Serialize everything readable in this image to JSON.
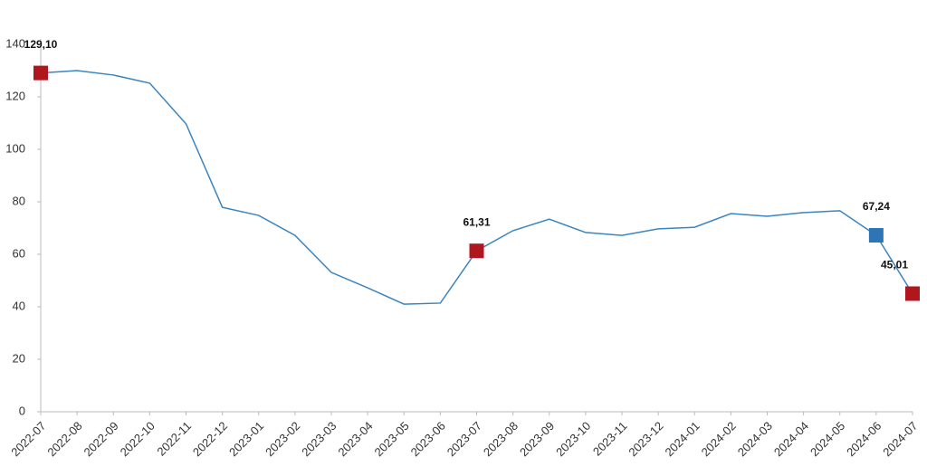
{
  "chart_data": {
    "type": "line",
    "categories": [
      "2022-07",
      "2022-08",
      "2022-09",
      "2022-10",
      "2022-11",
      "2022-12",
      "2023-01",
      "2023-02",
      "2023-03",
      "2023-04",
      "2023-05",
      "2023-06",
      "2023-07",
      "2023-08",
      "2023-09",
      "2023-10",
      "2023-11",
      "2023-12",
      "2024-01",
      "2024-02",
      "2024-03",
      "2024-04",
      "2024-05",
      "2024-06",
      "2024-07"
    ],
    "values": [
      129.1,
      130.0,
      128.3,
      125.2,
      109.7,
      77.9,
      74.8,
      67.2,
      53.1,
      47.2,
      41.0,
      41.4,
      61.31,
      69.0,
      73.4,
      68.3,
      67.2,
      69.7,
      70.3,
      75.5,
      74.5,
      75.9,
      76.6,
      67.24,
      45.01
    ],
    "value_labels": [
      "129,10",
      null,
      null,
      null,
      null,
      null,
      null,
      null,
      null,
      null,
      null,
      null,
      "61,31",
      null,
      null,
      null,
      null,
      null,
      null,
      null,
      null,
      null,
      null,
      "67,24",
      "45,01"
    ],
    "marker_colors": [
      "#b0161e",
      null,
      null,
      null,
      null,
      null,
      null,
      null,
      null,
      null,
      null,
      null,
      "#b0161e",
      null,
      null,
      null,
      null,
      null,
      null,
      null,
      null,
      null,
      null,
      "#2e75b6",
      "#b0161e"
    ],
    "color": "#3a84c0",
    "ylim": [
      0,
      140
    ],
    "yticks": [
      0,
      20,
      40,
      60,
      80,
      100,
      120,
      140
    ],
    "grid": false
  }
}
